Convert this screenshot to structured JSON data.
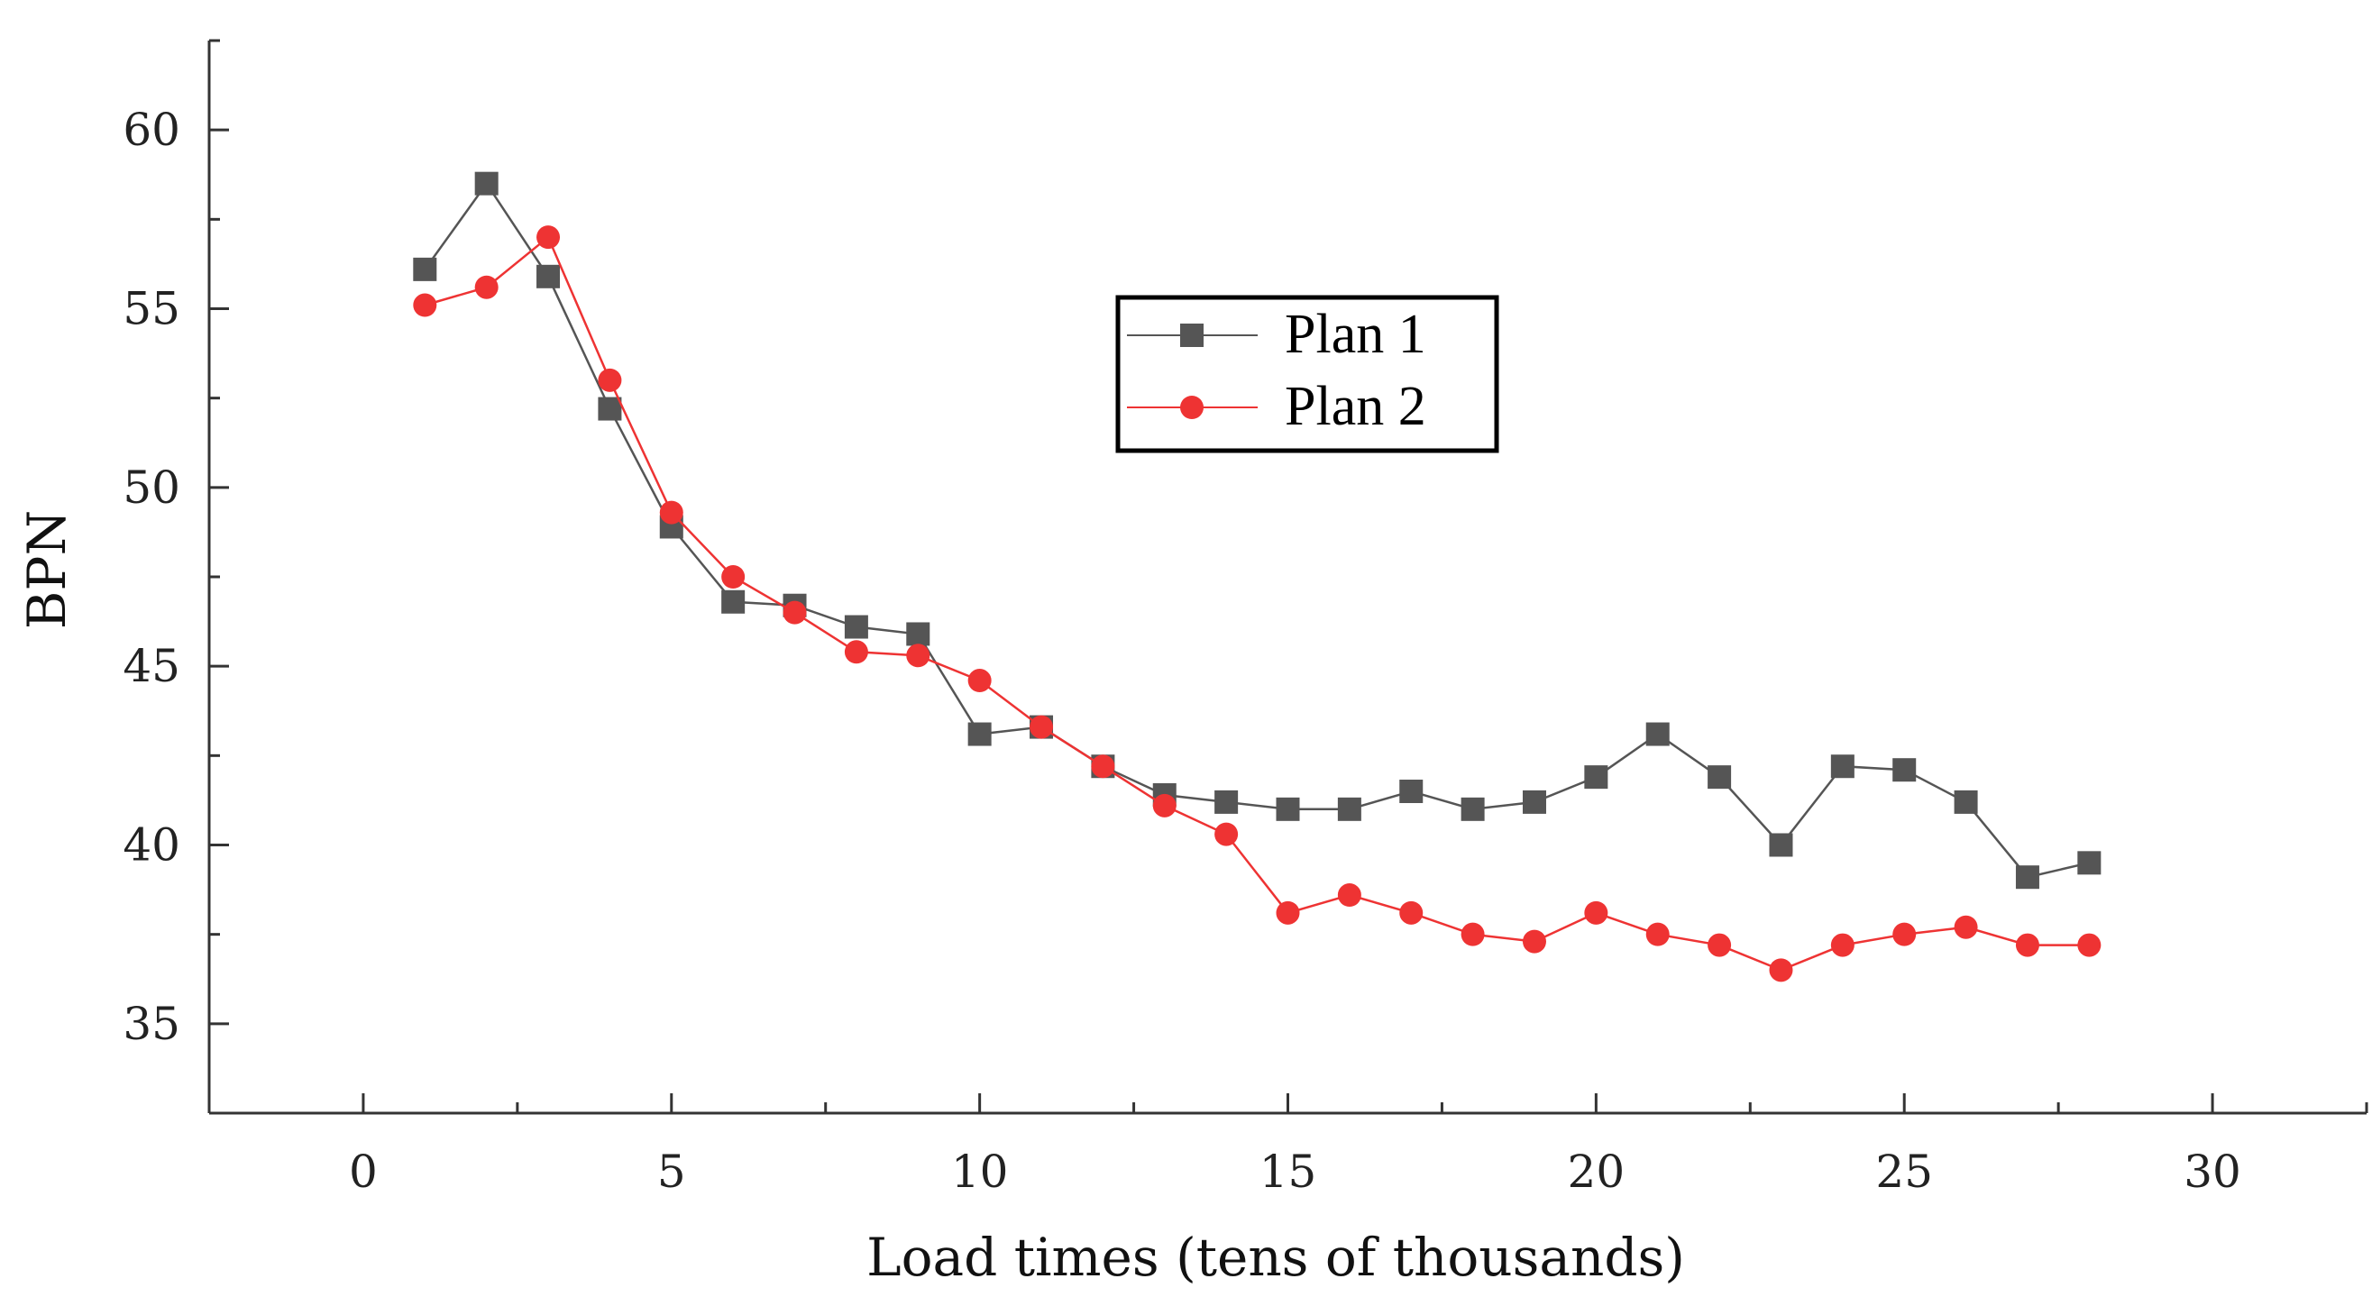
{
  "chart_data": {
    "type": "line",
    "title": "",
    "xlabel": "Load times (tens of thousands)",
    "ylabel": "BPN",
    "xlim": [
      -2.5,
      32.5
    ],
    "ylim": [
      32.5,
      62.5
    ],
    "xticks": [
      0,
      5,
      10,
      15,
      20,
      25,
      30
    ],
    "yticks": [
      35,
      40,
      45,
      50,
      55,
      60
    ],
    "x": [
      1,
      2,
      3,
      4,
      5,
      6,
      7,
      8,
      9,
      10,
      11,
      12,
      13,
      14,
      15,
      16,
      17,
      18,
      19,
      20,
      21,
      22,
      23,
      24,
      25,
      26,
      27,
      28
    ],
    "series": [
      {
        "name": "Plan 1",
        "color": "#555555",
        "marker": "square",
        "values": [
          56.1,
          58.5,
          55.9,
          52.2,
          48.9,
          46.8,
          46.7,
          46.1,
          45.9,
          43.1,
          43.3,
          42.2,
          41.4,
          41.2,
          41.0,
          41.0,
          41.5,
          41.0,
          41.2,
          41.9,
          43.1,
          41.9,
          40.0,
          42.2,
          42.1,
          41.2,
          39.1,
          39.5
        ]
      },
      {
        "name": "Plan 2",
        "color": "#ee3333",
        "marker": "circle",
        "values": [
          55.1,
          55.6,
          57.0,
          53.0,
          49.3,
          47.5,
          46.5,
          45.4,
          45.3,
          44.6,
          43.3,
          42.2,
          41.1,
          40.3,
          38.1,
          38.6,
          38.1,
          37.5,
          37.3,
          38.1,
          37.5,
          37.2,
          36.5,
          37.2,
          37.5,
          37.7,
          37.2,
          37.2
        ]
      }
    ],
    "legend": {
      "position": "upper-center",
      "entries": [
        "Plan 1",
        "Plan 2"
      ]
    },
    "grid": false
  }
}
